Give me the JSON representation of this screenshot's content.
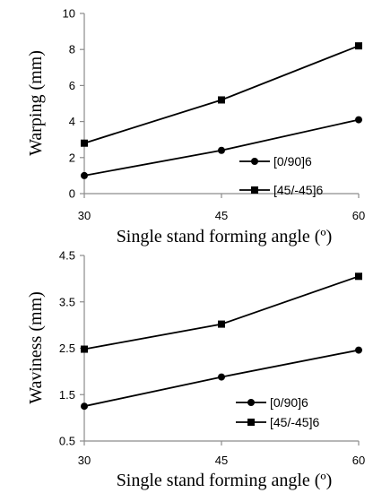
{
  "chart_data": [
    {
      "type": "line",
      "xlabel": "Single stand forming angle (º)",
      "ylabel": "Warping (mm)",
      "x": [
        30,
        45,
        60
      ],
      "xlim": [
        30,
        60
      ],
      "xticks": [
        "30",
        "45",
        "60"
      ],
      "ylim": [
        0,
        10
      ],
      "yticks": [
        "0",
        "2",
        "4",
        "6",
        "8",
        "10"
      ],
      "grid": false,
      "legend_position": "right",
      "series": [
        {
          "name": "[0/90]6",
          "marker": "circle",
          "values": [
            1.0,
            2.4,
            4.1
          ]
        },
        {
          "name": "[45/-45]6",
          "marker": "square",
          "values": [
            2.8,
            5.2,
            8.2
          ]
        }
      ]
    },
    {
      "type": "line",
      "xlabel": "Single stand forming angle (º)",
      "ylabel": "Waviness (mm)",
      "x": [
        30,
        45,
        60
      ],
      "xlim": [
        30,
        60
      ],
      "xticks": [
        "30",
        "45",
        "60"
      ],
      "ylim": [
        0.5,
        4.5
      ],
      "yticks": [
        "0.5",
        "1.5",
        "2.5",
        "3.5",
        "4.5"
      ],
      "grid": false,
      "legend_position": "bottom-right",
      "series": [
        {
          "name": "[0/90]6",
          "marker": "circle",
          "values": [
            1.25,
            1.88,
            2.46
          ]
        },
        {
          "name": "[45/-45]6",
          "marker": "square",
          "values": [
            2.48,
            3.02,
            4.05
          ]
        }
      ]
    }
  ]
}
